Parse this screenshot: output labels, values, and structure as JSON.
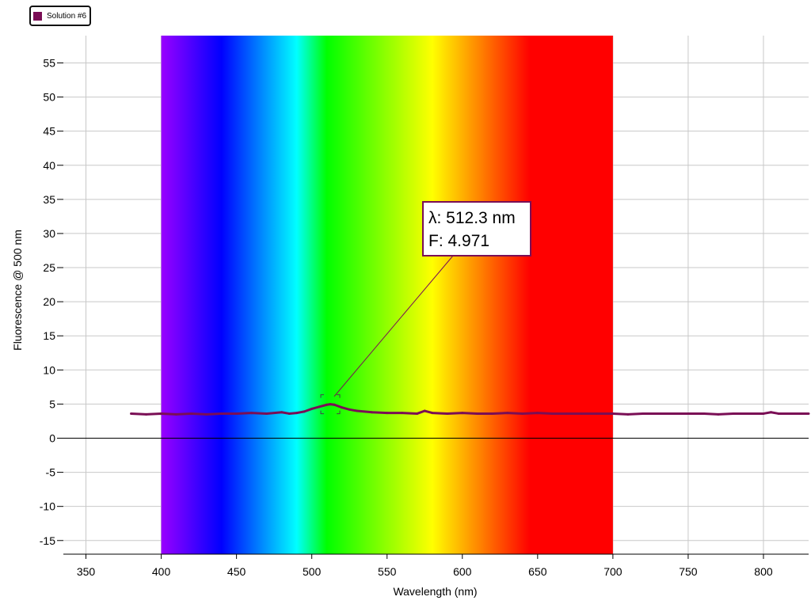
{
  "colors": {
    "series": "#7a0e55",
    "grid": "#c8c8c8",
    "zero_line": "#000000",
    "spectrum_stops": [
      {
        "nm": 400,
        "color": "#9900ff"
      },
      {
        "nm": 440,
        "color": "#0000ff"
      },
      {
        "nm": 490,
        "color": "#00ffff"
      },
      {
        "nm": 510,
        "color": "#00ff00"
      },
      {
        "nm": 580,
        "color": "#ffff00"
      },
      {
        "nm": 645,
        "color": "#ff0000"
      },
      {
        "nm": 700,
        "color": "#ff0000"
      }
    ]
  },
  "legend": {
    "label": "Solution #6"
  },
  "callout": {
    "lambda_text": "λ: 512.3 nm",
    "f_text": "F: 4.971"
  },
  "chart_data": {
    "type": "line",
    "xlabel": "Wavelength (nm)",
    "ylabel": "Fluorescence @ 500 nm",
    "xlim": [
      335,
      830
    ],
    "ylim": [
      -17,
      59
    ],
    "x_ticks": [
      350,
      400,
      450,
      500,
      550,
      600,
      650,
      700,
      750,
      800
    ],
    "y_ticks": [
      -15,
      -10,
      -5,
      0,
      5,
      10,
      15,
      20,
      25,
      30,
      35,
      40,
      45,
      50,
      55
    ],
    "grid": true,
    "legend_position": "top-left",
    "spectrum_band": [
      400,
      700
    ],
    "annotation": {
      "x": 512.3,
      "y": 4.971
    },
    "series": [
      {
        "name": "Solution #6",
        "x": [
          380,
          390,
          400,
          410,
          420,
          430,
          440,
          450,
          460,
          470,
          480,
          485,
          490,
          495,
          500,
          505,
          510,
          512.3,
          515,
          520,
          525,
          530,
          540,
          550,
          560,
          570,
          575,
          580,
          590,
          600,
          610,
          620,
          630,
          640,
          650,
          660,
          670,
          680,
          690,
          700,
          710,
          720,
          730,
          740,
          750,
          760,
          770,
          780,
          790,
          800,
          805,
          810,
          820,
          830
        ],
        "y": [
          3.6,
          3.5,
          3.6,
          3.5,
          3.6,
          3.5,
          3.6,
          3.6,
          3.7,
          3.6,
          3.8,
          3.6,
          3.7,
          3.9,
          4.3,
          4.6,
          4.9,
          4.97,
          4.9,
          4.5,
          4.2,
          4.0,
          3.8,
          3.7,
          3.7,
          3.6,
          4.0,
          3.7,
          3.6,
          3.7,
          3.6,
          3.6,
          3.7,
          3.6,
          3.7,
          3.6,
          3.6,
          3.6,
          3.6,
          3.6,
          3.5,
          3.6,
          3.6,
          3.6,
          3.6,
          3.6,
          3.5,
          3.6,
          3.6,
          3.6,
          3.8,
          3.6,
          3.6,
          3.6
        ]
      }
    ]
  }
}
